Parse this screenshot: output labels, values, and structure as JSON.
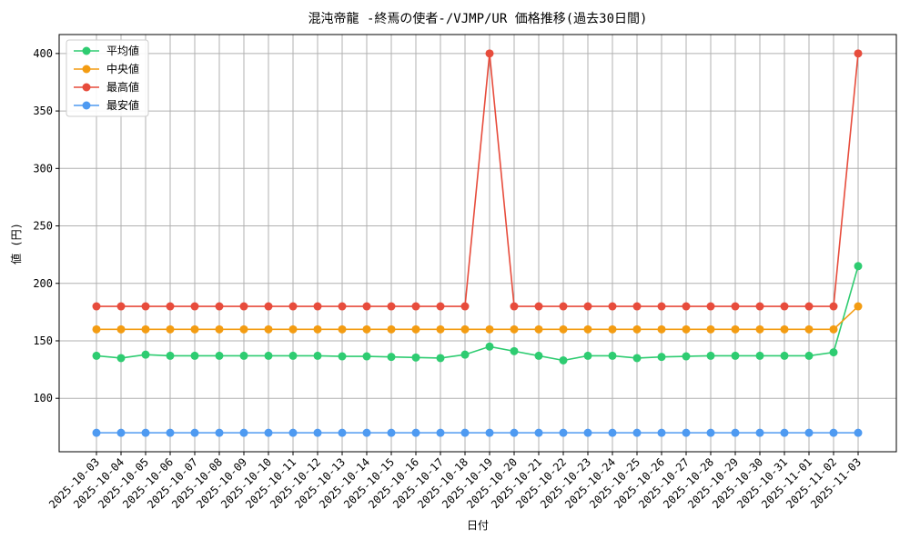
{
  "chart_data": {
    "type": "line",
    "title": "混沌帝龍 -終焉の使者-/VJMP/UR 価格推移(過去30日間)",
    "x_label": "日付",
    "y_label": "値 (円)",
    "categories": [
      "2025-10-03",
      "2025-10-04",
      "2025-10-05",
      "2025-10-06",
      "2025-10-07",
      "2025-10-08",
      "2025-10-09",
      "2025-10-10",
      "2025-10-11",
      "2025-10-12",
      "2025-10-13",
      "2025-10-14",
      "2025-10-15",
      "2025-10-16",
      "2025-10-17",
      "2025-10-18",
      "2025-10-19",
      "2025-10-20",
      "2025-10-21",
      "2025-10-22",
      "2025-10-23",
      "2025-10-24",
      "2025-10-25",
      "2025-10-26",
      "2025-10-27",
      "2025-10-28",
      "2025-10-29",
      "2025-10-30",
      "2025-10-31",
      "2025-11-01",
      "2025-11-02",
      "2025-11-03"
    ],
    "series": [
      {
        "name": "平均値",
        "color": "#2ecc71",
        "values": [
          137,
          135,
          138,
          137,
          137,
          137,
          137,
          137,
          137,
          137,
          136.5,
          136.5,
          136,
          135.5,
          135,
          138,
          145,
          141,
          137,
          133,
          137,
          137,
          135,
          136,
          136.5,
          137,
          137,
          137,
          137,
          137,
          140,
          215
        ]
      },
      {
        "name": "中央値",
        "color": "#f39c12",
        "values": [
          160,
          160,
          160,
          160,
          160,
          160,
          160,
          160,
          160,
          160,
          160,
          160,
          160,
          160,
          160,
          160,
          160,
          160,
          160,
          160,
          160,
          160,
          160,
          160,
          160,
          160,
          160,
          160,
          160,
          160,
          160,
          180
        ]
      },
      {
        "name": "最高値",
        "color": "#e74c3c",
        "values": [
          180,
          180,
          180,
          180,
          180,
          180,
          180,
          180,
          180,
          180,
          180,
          180,
          180,
          180,
          180,
          180,
          400,
          180,
          180,
          180,
          180,
          180,
          180,
          180,
          180,
          180,
          180,
          180,
          180,
          180,
          180,
          400
        ]
      },
      {
        "name": "最安値",
        "color": "#4e9af1",
        "values": [
          70,
          70,
          70,
          70,
          70,
          70,
          70,
          70,
          70,
          70,
          70,
          70,
          70,
          70,
          70,
          70,
          70,
          70,
          70,
          70,
          70,
          70,
          70,
          70,
          70,
          70,
          70,
          70,
          70,
          70,
          70,
          70
        ]
      }
    ],
    "ylim": [
      53.5,
      416.5
    ],
    "yticks": [
      100,
      150,
      200,
      250,
      300,
      350,
      400
    ],
    "grid": true,
    "legend": "upper-left"
  }
}
